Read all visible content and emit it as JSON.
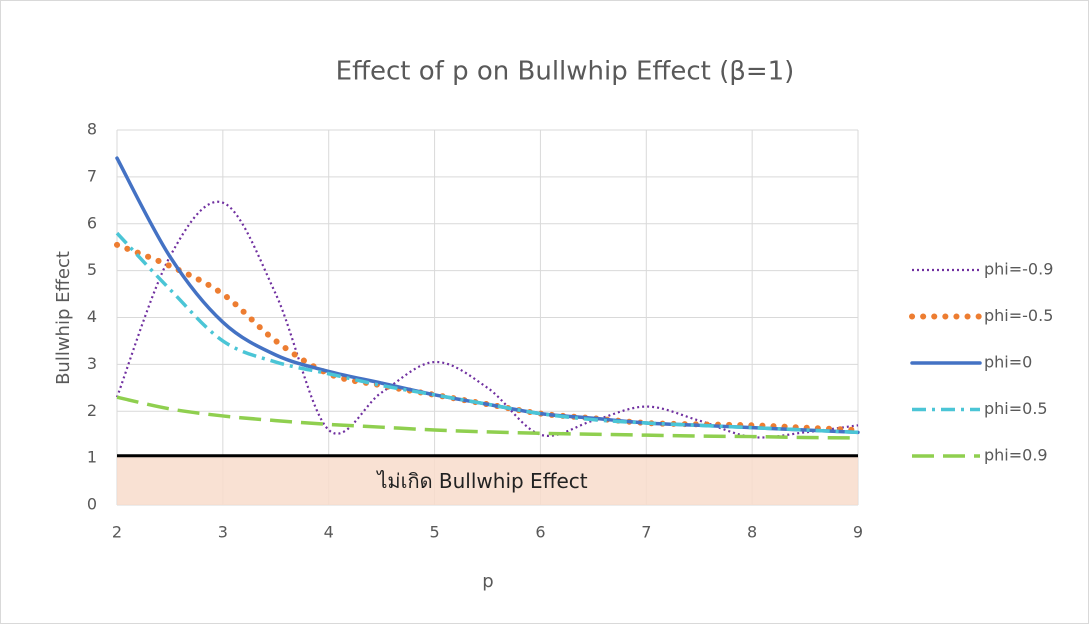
{
  "chart_data": {
    "type": "line",
    "title": "Effect of p on Bullwhip Effect (β=1)",
    "x_label": "p",
    "y_label": "Bullwhip Effect",
    "annotation": "ไม่เกิด Bullwhip Effect",
    "threshold": 1.05,
    "x": [
      2,
      2.5,
      3,
      3.5,
      4,
      4.5,
      5,
      5.5,
      6,
      6.5,
      7,
      7.5,
      8,
      8.5,
      9
    ],
    "series": [
      {
        "name": "phi=-0.9",
        "color": "#7030a0",
        "dash": "dotted",
        "values": [
          2.3,
          5.3,
          6.45,
          4.5,
          1.6,
          2.4,
          3.05,
          2.5,
          1.5,
          1.8,
          2.1,
          1.8,
          1.45,
          1.55,
          1.7
        ]
      },
      {
        "name": "phi=-0.5",
        "color": "#ed7d31",
        "dash": "round-dot",
        "values": [
          5.55,
          5.1,
          4.5,
          3.5,
          2.8,
          2.55,
          2.35,
          2.15,
          1.95,
          1.85,
          1.75,
          1.72,
          1.7,
          1.65,
          1.6
        ]
      },
      {
        "name": "phi=0",
        "color": "#4472c4",
        "dash": "solid",
        "values": [
          7.4,
          5.3,
          3.9,
          3.2,
          2.85,
          2.6,
          2.35,
          2.15,
          1.95,
          1.85,
          1.75,
          1.7,
          1.65,
          1.6,
          1.55
        ]
      },
      {
        "name": "phi=0.5",
        "color": "#4bc5d6",
        "dash": "dash-dot",
        "values": [
          5.8,
          4.6,
          3.5,
          3.05,
          2.8,
          2.55,
          2.35,
          2.15,
          1.95,
          1.82,
          1.75,
          1.7,
          1.65,
          1.6,
          1.55
        ]
      },
      {
        "name": "phi=0.9",
        "color": "#8fcf4f",
        "dash": "dash",
        "values": [
          2.3,
          2.05,
          1.9,
          1.8,
          1.72,
          1.66,
          1.6,
          1.56,
          1.53,
          1.51,
          1.49,
          1.47,
          1.46,
          1.44,
          1.43
        ]
      }
    ],
    "xlim": [
      2,
      9
    ],
    "xticks": [
      2,
      3,
      4,
      5,
      6,
      7,
      8,
      9
    ],
    "ylim": [
      0,
      8
    ],
    "yticks": [
      0,
      1,
      2,
      3,
      4,
      5,
      6,
      7,
      8
    ],
    "grid": true,
    "legend": "right"
  }
}
